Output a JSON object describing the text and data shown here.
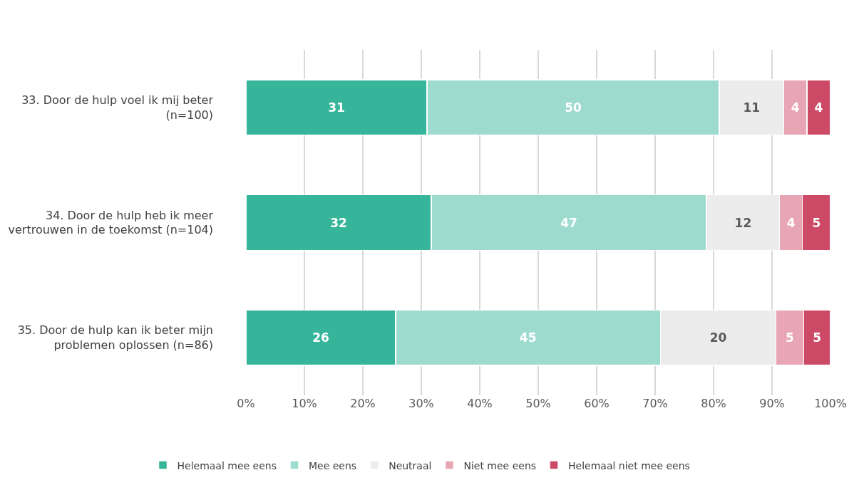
{
  "chart_data": {
    "type": "bar",
    "orientation": "horizontal",
    "stacked": true,
    "categories": [
      "33. Door de hulp voel ik mij beter (n=100)",
      "34. Door de hulp heb ik meer vertrouwen in de toekomst (n=104)",
      "35. Door de hulp kan ik beter mijn problemen oplossen (n=86)"
    ],
    "series": [
      {
        "name": "Helemaal mee eens",
        "color": "#36b59a",
        "values": [
          31,
          31.7,
          25.6
        ],
        "value_labels": [
          "31",
          "32",
          "26"
        ]
      },
      {
        "name": "Mee eens",
        "color": "#9ddbcf",
        "values": [
          50,
          47.1,
          45.3
        ],
        "value_labels": [
          "50",
          "47",
          "45"
        ]
      },
      {
        "name": "Neutraal",
        "color": "#ececec",
        "values": [
          11,
          12.5,
          19.8
        ],
        "value_labels": [
          "11",
          "12",
          "20"
        ]
      },
      {
        "name": "Niet mee eens",
        "color": "#e8a5b4",
        "values": [
          4,
          3.9,
          4.7
        ],
        "value_labels": [
          "4",
          "4",
          "5"
        ]
      },
      {
        "name": "Helemaal niet mee eens",
        "color": "#cc4a65",
        "values": [
          4,
          4.8,
          4.6
        ],
        "value_labels": [
          "4",
          "5",
          "5"
        ]
      }
    ],
    "xlim": [
      0,
      100
    ],
    "xticks": [
      {
        "value": 0,
        "label": "0%"
      },
      {
        "value": 10,
        "label": "10%"
      },
      {
        "value": 20,
        "label": "20%"
      },
      {
        "value": 30,
        "label": "30%"
      },
      {
        "value": 40,
        "label": "40%"
      },
      {
        "value": 50,
        "label": "50%"
      },
      {
        "value": 60,
        "label": "60%"
      },
      {
        "value": 70,
        "label": "70%"
      },
      {
        "value": 80,
        "label": "80%"
      },
      {
        "value": 90,
        "label": "90%"
      },
      {
        "value": 100,
        "label": "100%"
      }
    ],
    "grid": "x",
    "legend": "bottom"
  }
}
